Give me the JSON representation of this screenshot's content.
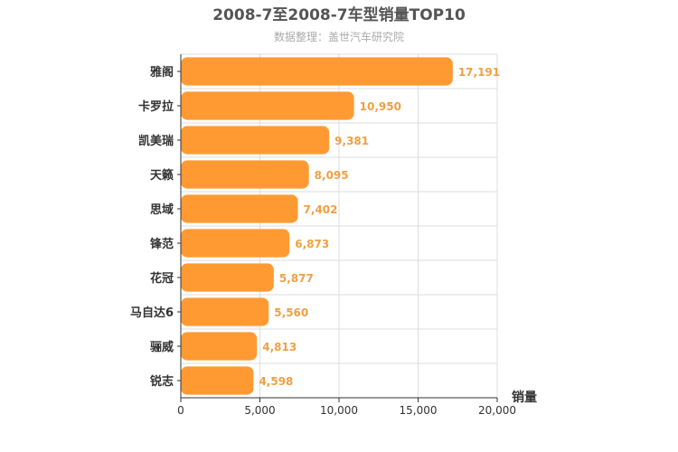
{
  "chart_data": {
    "type": "bar",
    "orientation": "horizontal",
    "title": "2008-7至2008-7车型销量TOP10",
    "subtitle": "数据整理：盖世汽车研究院",
    "xlabel": "销量",
    "ylabel": "",
    "categories": [
      "雅阁",
      "卡罗拉",
      "凯美瑞",
      "天籁",
      "思域",
      "锋范",
      "花冠",
      "马自达6",
      "骊威",
      "锐志"
    ],
    "values": [
      17191,
      10950,
      9381,
      8095,
      7402,
      6873,
      5877,
      5560,
      4813,
      4598
    ],
    "value_labels": [
      "17,191",
      "10,950",
      "9,381",
      "8,095",
      "7,402",
      "6,873",
      "5,877",
      "5,560",
      "4,813",
      "4,598"
    ],
    "xlim": [
      0,
      20000
    ],
    "xticks": [
      0,
      5000,
      10000,
      15000,
      20000
    ],
    "xtick_labels": [
      "0",
      "5,000",
      "10,000",
      "15,000",
      "20,000"
    ],
    "grid": true,
    "legend": "none",
    "colors": {
      "bar": "#ff9a33",
      "value_label": "#f0a040",
      "grid": "#dddddd",
      "axis": "#333333"
    }
  }
}
